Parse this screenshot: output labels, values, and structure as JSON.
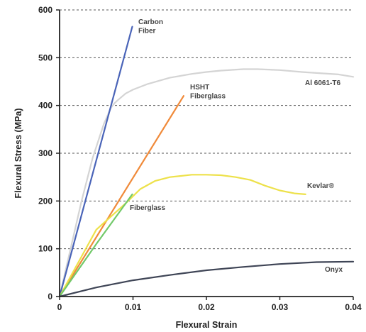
{
  "chart_data": {
    "type": "line",
    "xlabel": "Flexural Strain",
    "ylabel": "Flexural Stress (MPa)",
    "xlim": [
      0,
      0.04
    ],
    "ylim": [
      0,
      600
    ],
    "xticks": [
      0,
      0.01,
      0.02,
      0.03,
      0.04
    ],
    "xtick_labels": [
      "0",
      "0.01",
      "0.02",
      "0.03",
      "0.04"
    ],
    "yticks": [
      0,
      100,
      200,
      300,
      400,
      500,
      600
    ],
    "ytick_labels": [
      "0",
      "100",
      "200",
      "300",
      "400",
      "500",
      "600"
    ],
    "grid": "horizontal dashed",
    "legend": "inline labels",
    "series": [
      {
        "name": "Al 6061-T6",
        "label_lines": [
          "Al 6061-T6"
        ],
        "color": "#d4d4d4",
        "x": [
          0,
          0.0015,
          0.003,
          0.0045,
          0.006,
          0.007,
          0.0075,
          0.008,
          0.009,
          0.01,
          0.012,
          0.015,
          0.018,
          0.02,
          0.022,
          0.025,
          0.027,
          0.03,
          0.033,
          0.035,
          0.038,
          0.04
        ],
        "y": [
          0,
          100,
          200,
          290,
          360,
          395,
          405,
          412,
          425,
          433,
          445,
          458,
          466,
          470,
          473,
          476,
          476,
          474,
          470,
          468,
          465,
          460
        ]
      },
      {
        "name": "Carbon Fiber",
        "label_lines": [
          "Carbon",
          "Fiber"
        ],
        "color": "#4a64b8",
        "x": [
          0,
          0.0099
        ],
        "y": [
          0,
          565
        ]
      },
      {
        "name": "HSHT Fiberglass",
        "label_lines": [
          "HSHT",
          "Fiberglass"
        ],
        "color": "#f08a3a",
        "x": [
          0,
          0.0169
        ],
        "y": [
          0,
          420
        ]
      },
      {
        "name": "Kevlar®",
        "label_lines": [
          "Kevlar®"
        ],
        "color": "#ede14a",
        "x": [
          0,
          0.005,
          0.009,
          0.01,
          0.011,
          0.013,
          0.015,
          0.018,
          0.02,
          0.022,
          0.024,
          0.026,
          0.028,
          0.03,
          0.032,
          0.0335
        ],
        "y": [
          0,
          140,
          195,
          210,
          225,
          242,
          250,
          255,
          255,
          254,
          250,
          244,
          232,
          222,
          216,
          214
        ]
      },
      {
        "name": "Fiberglass",
        "label_lines": [
          "Fiberglass"
        ],
        "color": "#72c96a",
        "x": [
          0,
          0.005,
          0.0099
        ],
        "y": [
          0,
          110,
          214
        ]
      },
      {
        "name": "Onyx",
        "label_lines": [
          "Onyx"
        ],
        "color": "#3f4556",
        "x": [
          0,
          0.005,
          0.01,
          0.015,
          0.02,
          0.025,
          0.03,
          0.035,
          0.04
        ],
        "y": [
          0,
          19,
          34,
          45,
          55,
          62,
          68,
          72,
          73
        ]
      }
    ]
  }
}
